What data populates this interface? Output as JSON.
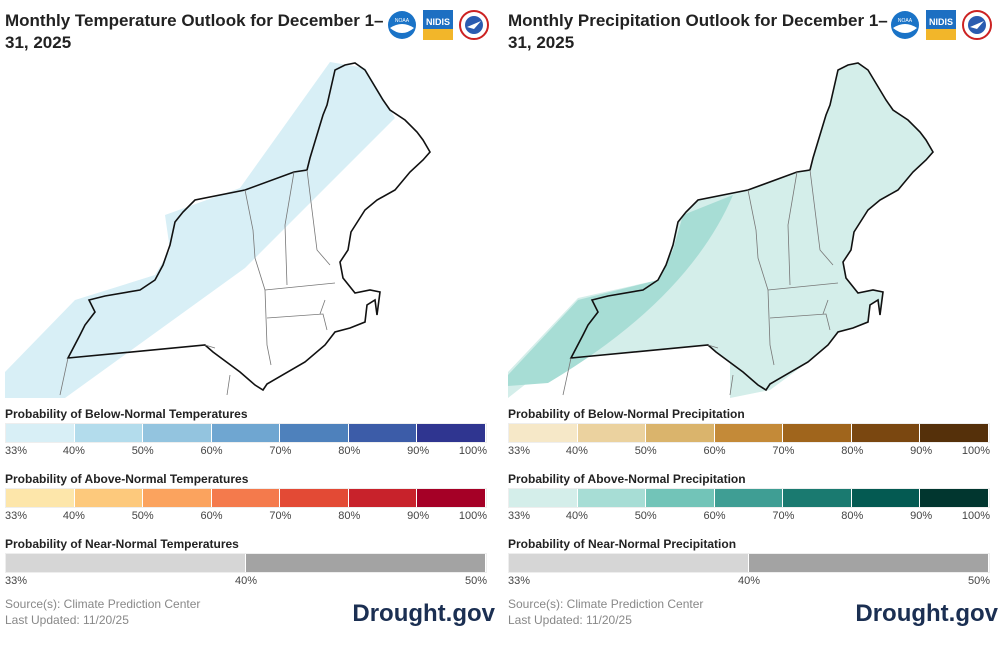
{
  "panels": [
    {
      "title": "Monthly Temperature Outlook for December 1–31, 2025",
      "legends": [
        {
          "title": "Probability of Below-Normal Temperatures",
          "ticks": [
            "33%",
            "40%",
            "50%",
            "60%",
            "70%",
            "80%",
            "90%",
            "100%"
          ],
          "colors": [
            "#d8eff6",
            "#b3dcec",
            "#93c4df",
            "#6fa6d1",
            "#4e81bc",
            "#3c5ca8",
            "#2f3590"
          ]
        },
        {
          "title": "Probability of Above-Normal Temperatures",
          "ticks": [
            "33%",
            "40%",
            "50%",
            "60%",
            "70%",
            "80%",
            "90%",
            "100%"
          ],
          "colors": [
            "#fde6aa",
            "#fdc97c",
            "#fba35e",
            "#f47a4c",
            "#e34a35",
            "#c8222b",
            "#a50026"
          ]
        },
        {
          "title": "Probability of Near-Normal Temperatures",
          "ticks": [
            "33%",
            "40%",
            "50%"
          ],
          "colors": [
            "#d6d6d6",
            "#a3a3a3"
          ]
        }
      ],
      "map_fill": {
        "below_normal_33_40": "#d8eff6"
      },
      "source": "Source(s): Climate Prediction Center",
      "updated": "Last Updated: 11/20/25",
      "brand": "Drought.gov"
    },
    {
      "title": "Monthly Precipitation Outlook for December 1–31, 2025",
      "legends": [
        {
          "title": "Probability of Below-Normal Precipitation",
          "ticks": [
            "33%",
            "40%",
            "50%",
            "60%",
            "70%",
            "80%",
            "90%",
            "100%"
          ],
          "colors": [
            "#f6e8c8",
            "#ebd29f",
            "#dab46c",
            "#c48a38",
            "#a0651c",
            "#7a4710",
            "#55300a"
          ]
        },
        {
          "title": "Probability of Above-Normal Precipitation",
          "ticks": [
            "33%",
            "40%",
            "50%",
            "60%",
            "70%",
            "80%",
            "90%",
            "100%"
          ],
          "colors": [
            "#d4eeea",
            "#a7ddd5",
            "#72c4b8",
            "#3f9e94",
            "#1a7a70",
            "#045a52",
            "#01362f"
          ]
        },
        {
          "title": "Probability of Near-Normal Precipitation",
          "ticks": [
            "33%",
            "40%",
            "50%"
          ],
          "colors": [
            "#d6d6d6",
            "#a3a3a3"
          ]
        }
      ],
      "map_fill": {
        "above_normal_33_40": "#d4eeea",
        "above_normal_40_50": "#a7ddd5"
      },
      "source": "Source(s): Climate Prediction Center",
      "updated": "Last Updated: 11/20/25",
      "brand": "Drought.gov"
    }
  ],
  "logos": [
    "noaa-logo",
    "nidis-logo",
    "nws-logo"
  ],
  "logo_text": {
    "noaa": "NOAA",
    "nidis": "NIDIS"
  }
}
